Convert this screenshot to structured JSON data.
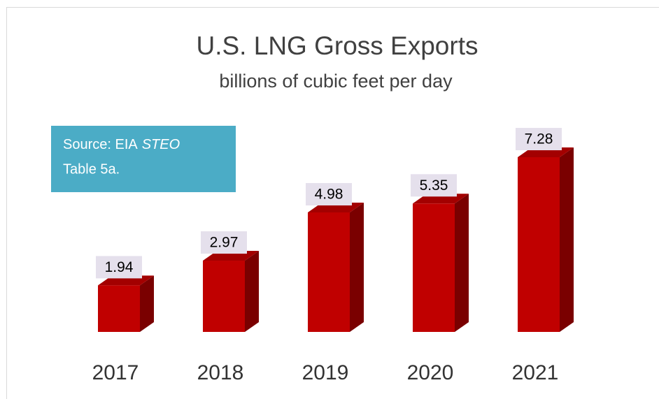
{
  "chart_data": {
    "type": "bar3d",
    "title": "U.S. LNG Gross Exports",
    "subtitle": "billions of cubic feet per day",
    "annotation": [
      "Source: EIA",
      "STEO",
      "Table 5a."
    ],
    "categories": [
      "2017",
      "2018",
      "2019",
      "2020",
      "2021"
    ],
    "values": [
      1.94,
      2.97,
      4.98,
      5.35,
      7.28
    ],
    "colors": {
      "front": "#c00000",
      "side": "#7a0000",
      "top": "#a30000"
    },
    "label_box_color": "#e5e0ec",
    "annotation_color": "#4bacc6"
  }
}
